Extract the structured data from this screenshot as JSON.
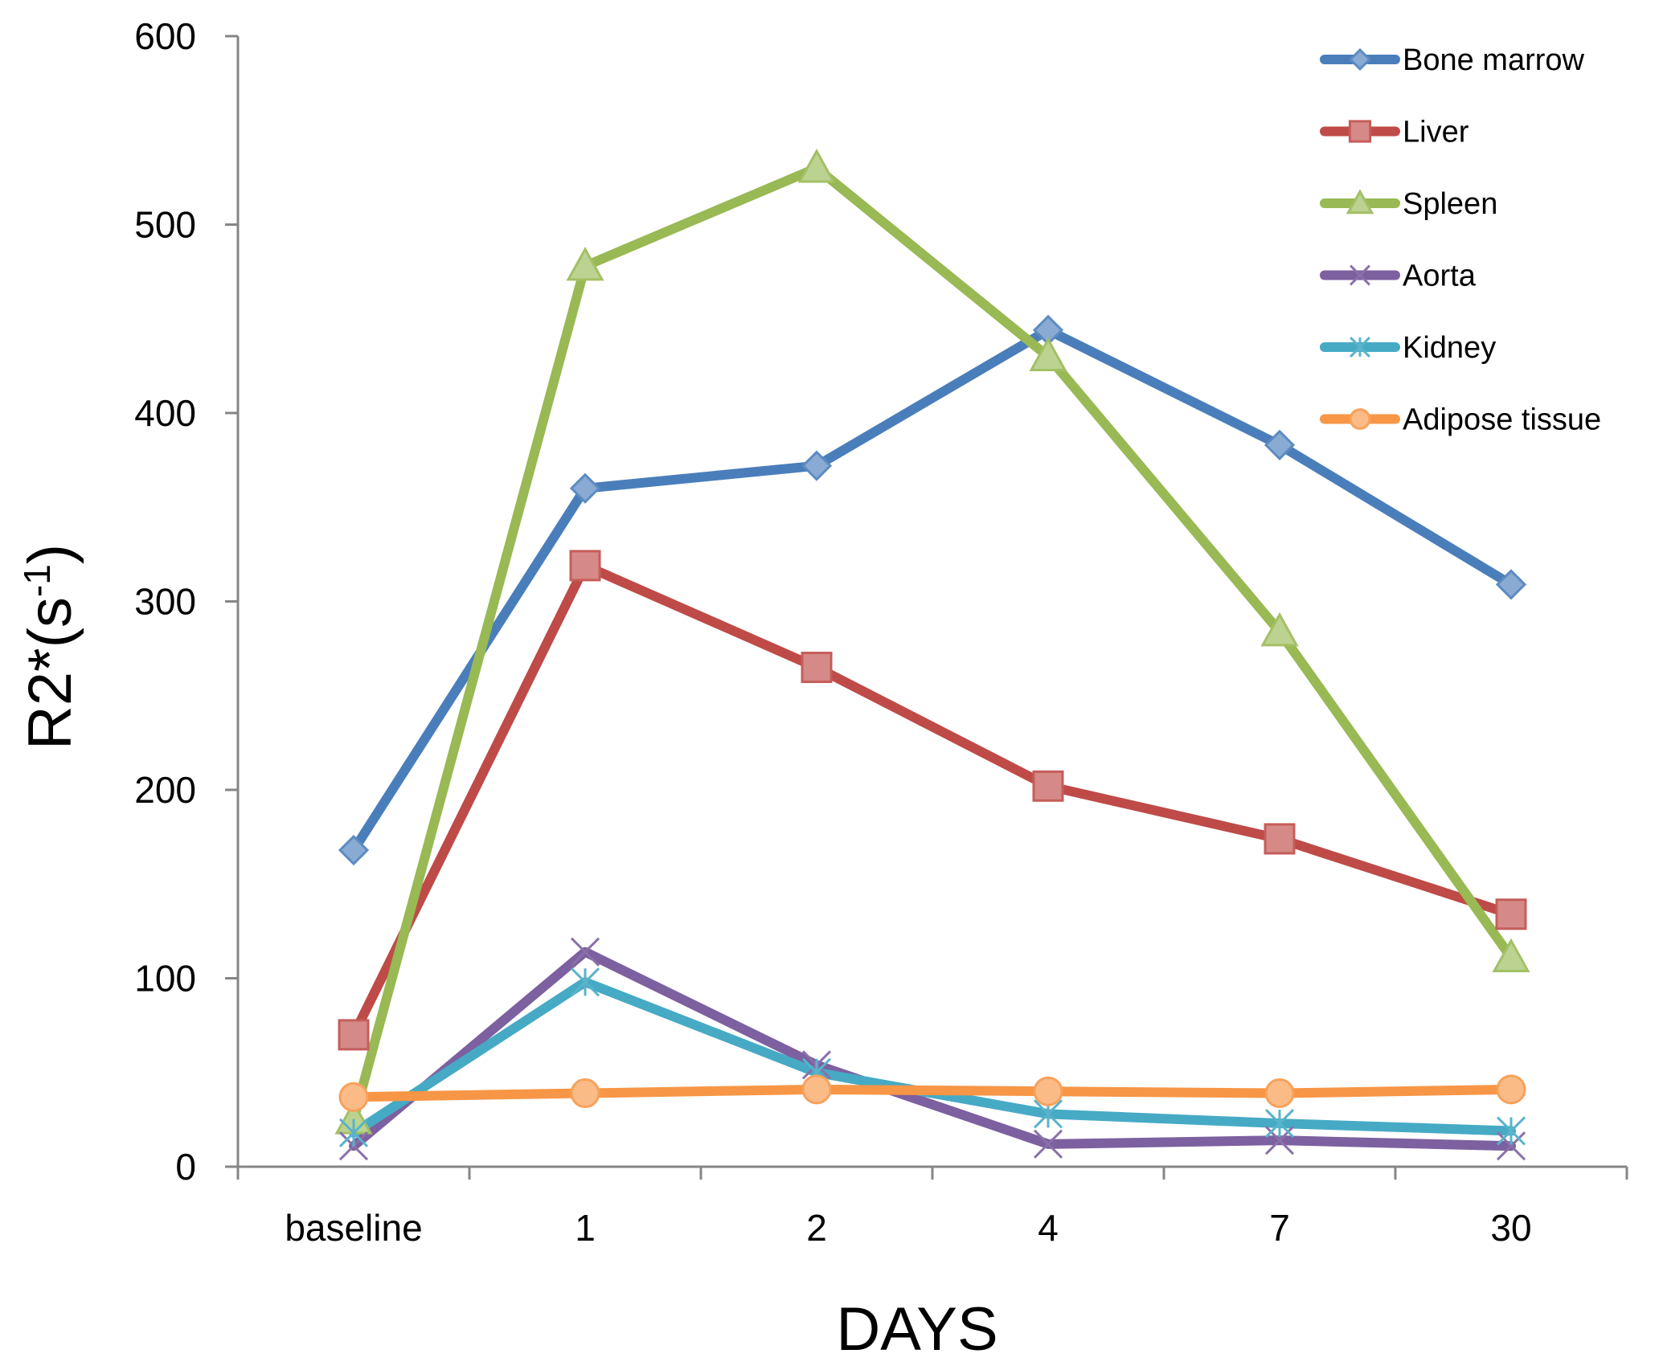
{
  "chart_data": {
    "type": "line",
    "title": "",
    "xlabel": "DAYS",
    "ylabel": "R2*(s-1)",
    "ylabel_main": "R2*(s",
    "ylabel_sup": "-1",
    "ylabel_close": ")",
    "categories": [
      "baseline",
      "1",
      "2",
      "4",
      "7",
      "30"
    ],
    "ylim": [
      0,
      600
    ],
    "yticks": [
      0,
      100,
      200,
      300,
      400,
      500,
      600
    ],
    "grid": false,
    "legend_position": "top-right",
    "series": [
      {
        "name": "Bone marrow",
        "color": "#4A7EBB",
        "marker": "diamond",
        "values": [
          168,
          360,
          372,
          444,
          383,
          309
        ]
      },
      {
        "name": "Liver",
        "color": "#BE4B48",
        "marker": "square",
        "values": [
          70,
          319,
          265,
          202,
          174,
          134
        ]
      },
      {
        "name": "Spleen",
        "color": "#98B954",
        "marker": "triangle",
        "values": [
          25,
          478,
          530,
          430,
          284,
          111
        ]
      },
      {
        "name": "Aorta",
        "color": "#7D60A0",
        "marker": "x",
        "values": [
          11,
          114,
          54,
          12,
          14,
          11
        ]
      },
      {
        "name": "Kidney",
        "color": "#46AAC5",
        "marker": "star",
        "values": [
          18,
          98,
          50,
          28,
          23,
          19
        ]
      },
      {
        "name": "Adipose tissue",
        "color": "#F79646",
        "marker": "circle",
        "values": [
          37,
          39,
          41,
          40,
          39,
          41
        ]
      }
    ]
  }
}
